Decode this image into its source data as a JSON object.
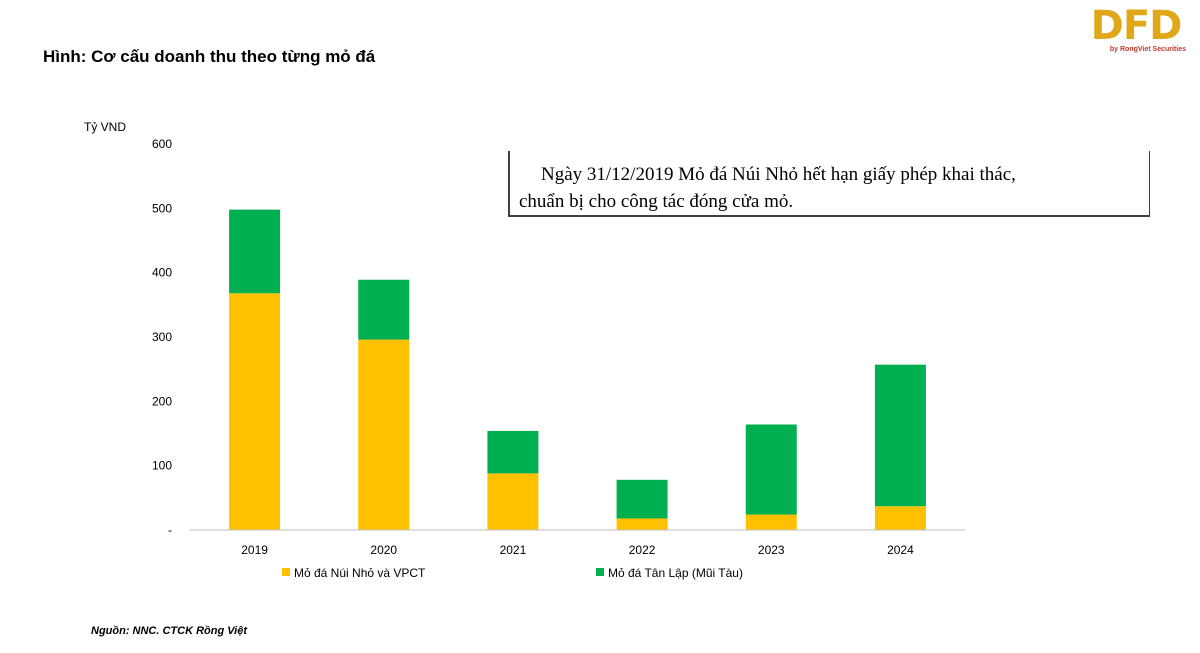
{
  "header": {
    "title": "Hình: Cơ cấu doanh thu theo từng mỏ đá",
    "logo_text": "DFD",
    "logo_subtext": "by RongViet Securities"
  },
  "annotation": {
    "line1": "Ngày 31/12/2019  Mỏ đá Núi Nhỏ hết hạn giấy phép khai thác,",
    "line2": "chuẩn bị cho công tác đóng cửa mỏ."
  },
  "footer": {
    "source": "Nguồn: NNC. CTCK Rồng Việt"
  },
  "chart_data": {
    "type": "bar",
    "stacked": true,
    "categories": [
      "2019",
      "2020",
      "2021",
      "2022",
      "2023",
      "2024"
    ],
    "ylabel": "Tỷ VND",
    "ylim": [
      0,
      600
    ],
    "yticks": [
      0,
      100,
      200,
      300,
      400,
      500,
      600
    ],
    "ytick_labels": [
      "-",
      "100",
      "200",
      "300",
      "400",
      "500",
      "600"
    ],
    "grid": false,
    "legend_position": "bottom",
    "series": [
      {
        "name": "Mỏ đá Núi Nhỏ và VPCT",
        "color": "#ffc000",
        "values": [
          368,
          296,
          88,
          18,
          24,
          37
        ]
      },
      {
        "name": "Mỏ đá Tân Lập (Mũi Tàu)",
        "color": "#00b050",
        "values": [
          130,
          93,
          66,
          60,
          140,
          220
        ]
      }
    ]
  }
}
